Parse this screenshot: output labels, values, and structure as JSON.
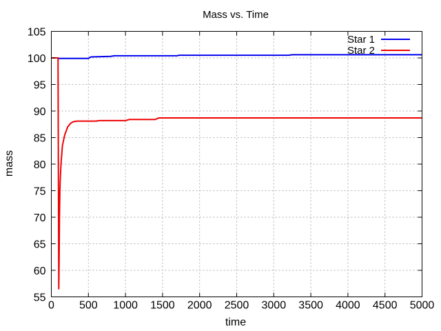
{
  "chart_data": {
    "type": "line",
    "title": "Mass vs. Time",
    "xlabel": "time",
    "ylabel": "mass",
    "xlim": [
      0,
      5000
    ],
    "ylim": [
      55,
      105
    ],
    "xticks": [
      0,
      500,
      1000,
      1500,
      2000,
      2500,
      3000,
      3500,
      4000,
      4500,
      5000
    ],
    "yticks": [
      55,
      60,
      65,
      70,
      75,
      80,
      85,
      90,
      95,
      100,
      105
    ],
    "grid": true,
    "legend_position": "top-right",
    "series": [
      {
        "name": "Star 1",
        "color": "#0000ee",
        "points": [
          [
            0,
            100.0
          ],
          [
            90,
            100.0
          ],
          [
            95,
            99.9
          ],
          [
            500,
            99.9
          ],
          [
            520,
            100.1
          ],
          [
            540,
            100.2
          ],
          [
            800,
            100.3
          ],
          [
            850,
            100.4
          ],
          [
            1700,
            100.4
          ],
          [
            1720,
            100.5
          ],
          [
            3200,
            100.5
          ],
          [
            3250,
            100.6
          ],
          [
            5000,
            100.6
          ]
        ]
      },
      {
        "name": "Star 2",
        "color": "#ee0000",
        "points": [
          [
            0,
            100.0
          ],
          [
            90,
            100.0
          ],
          [
            95,
            80.0
          ],
          [
            100,
            56.5
          ],
          [
            105,
            62.0
          ],
          [
            110,
            70.0
          ],
          [
            115,
            75.0
          ],
          [
            120,
            77.0
          ],
          [
            130,
            80.0
          ],
          [
            150,
            83.5
          ],
          [
            180,
            85.5
          ],
          [
            220,
            87.0
          ],
          [
            260,
            87.7
          ],
          [
            300,
            88.0
          ],
          [
            350,
            88.1
          ],
          [
            600,
            88.1
          ],
          [
            650,
            88.2
          ],
          [
            1000,
            88.2
          ],
          [
            1050,
            88.4
          ],
          [
            1400,
            88.4
          ],
          [
            1450,
            88.7
          ],
          [
            5000,
            88.7
          ]
        ]
      }
    ]
  }
}
